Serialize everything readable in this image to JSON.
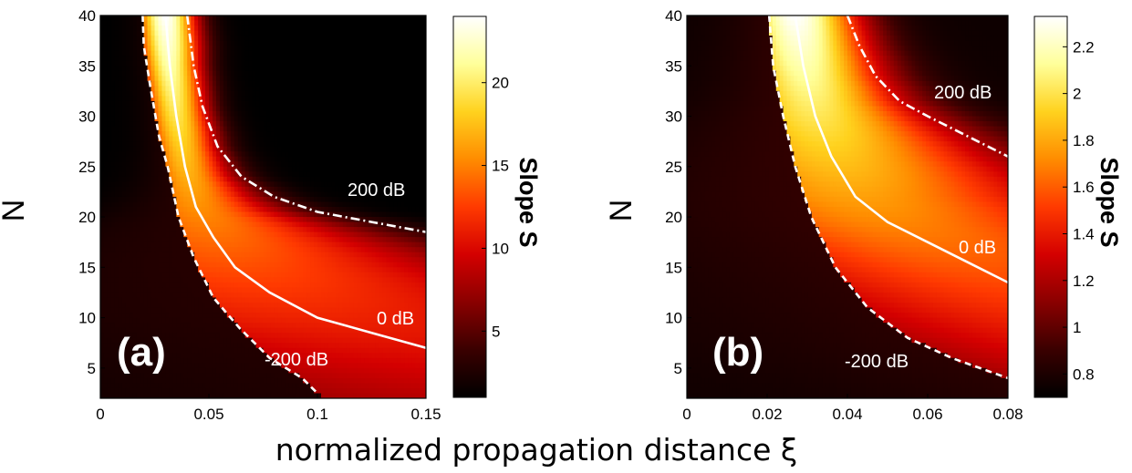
{
  "figure": {
    "xlabel": "normalized propagation distance ξ"
  },
  "colormap": [
    "#000000",
    "#3a0000",
    "#8a0000",
    "#d40000",
    "#ff3a00",
    "#ff8c00",
    "#ffd21e",
    "#ffff9a",
    "#ffffff"
  ],
  "chart_data": [
    {
      "type": "heatmap",
      "panel_label": "(a)",
      "ylabel": "N",
      "colorbar_label": "Slope S",
      "xlim": [
        0,
        0.15
      ],
      "ylim": [
        2,
        40
      ],
      "xticks": [
        0,
        0.05,
        0.1,
        0.15
      ],
      "xtick_labels": [
        "0",
        "0.05",
        "0.1",
        "0.15"
      ],
      "yticks": [
        5,
        10,
        15,
        20,
        25,
        30,
        35,
        40
      ],
      "ytick_labels": [
        "5",
        "10",
        "15",
        "20",
        "25",
        "30",
        "35",
        "40"
      ],
      "clim": [
        1,
        24
      ],
      "cticks": [
        5,
        10,
        15,
        20
      ],
      "ctick_labels": [
        "5",
        "10",
        "15",
        "20"
      ],
      "ridge": {
        "k": 2.1,
        "max_value": 24,
        "floor_value": 1,
        "peak_at_N": 40
      },
      "contours": [
        {
          "label": "-200 dB",
          "style": "dashed",
          "points": [
            [
              0.0195,
              40
            ],
            [
              0.02,
              37
            ],
            [
              0.023,
              33
            ],
            [
              0.027,
              28
            ],
            [
              0.031,
              25
            ],
            [
              0.036,
              20
            ],
            [
              0.043,
              16
            ],
            [
              0.052,
              12
            ],
            [
              0.064,
              9
            ],
            [
              0.078,
              6
            ],
            [
              0.093,
              4
            ],
            [
              0.1,
              2.5
            ]
          ]
        },
        {
          "label": "0 dB",
          "style": "solid",
          "points": [
            [
              0.03,
              40
            ],
            [
              0.032,
              35
            ],
            [
              0.035,
              30
            ],
            [
              0.039,
              25
            ],
            [
              0.044,
              21
            ],
            [
              0.052,
              18
            ],
            [
              0.062,
              15
            ],
            [
              0.078,
              12.5
            ],
            [
              0.1,
              10
            ],
            [
              0.125,
              8.5
            ],
            [
              0.15,
              7
            ]
          ]
        },
        {
          "label": "200 dB",
          "style": "dashdot",
          "points": [
            [
              0.04,
              40
            ],
            [
              0.043,
              35
            ],
            [
              0.047,
              31
            ],
            [
              0.054,
              27
            ],
            [
              0.065,
              24
            ],
            [
              0.08,
              22
            ],
            [
              0.1,
              20.5
            ],
            [
              0.125,
              19.5
            ],
            [
              0.15,
              18.5
            ]
          ]
        }
      ]
    },
    {
      "type": "heatmap",
      "panel_label": "(b)",
      "ylabel": "N",
      "colorbar_label": "Slope S",
      "xlim": [
        0,
        0.08
      ],
      "ylim": [
        2,
        40
      ],
      "xticks": [
        0,
        0.02,
        0.04,
        0.06,
        0.08
      ],
      "xtick_labels": [
        "0",
        "0.02",
        "0.04",
        "0.06",
        "0.08"
      ],
      "yticks": [
        5,
        10,
        15,
        20,
        25,
        30,
        35,
        40
      ],
      "ytick_labels": [
        "5",
        "10",
        "15",
        "20",
        "25",
        "30",
        "35",
        "40"
      ],
      "clim": [
        0.7,
        2.33
      ],
      "cticks": [
        0.8,
        1,
        1.2,
        1.4,
        1.6,
        1.8,
        2,
        2.2
      ],
      "ctick_labels": [
        "0.8",
        "1",
        "1.2",
        "1.4",
        "1.6",
        "1.8",
        "2",
        "2.2"
      ],
      "ridge": {
        "k": 1.55,
        "max_value": 2.33,
        "floor_value": 0.75,
        "peak_at_N": 40
      },
      "contours": [
        {
          "label": "-200 dB",
          "style": "dashed",
          "points": [
            [
              0.0205,
              40
            ],
            [
              0.0215,
              35
            ],
            [
              0.024,
              30
            ],
            [
              0.027,
              25
            ],
            [
              0.031,
              20
            ],
            [
              0.037,
              15
            ],
            [
              0.045,
              11
            ],
            [
              0.055,
              8
            ],
            [
              0.066,
              6
            ],
            [
              0.08,
              4
            ]
          ]
        },
        {
          "label": "0 dB",
          "style": "solid",
          "points": [
            [
              0.027,
              40
            ],
            [
              0.029,
              35
            ],
            [
              0.032,
              30
            ],
            [
              0.036,
              26
            ],
            [
              0.042,
              22
            ],
            [
              0.05,
              19.5
            ],
            [
              0.06,
              17.5
            ],
            [
              0.07,
              15.5
            ],
            [
              0.08,
              13.5
            ]
          ]
        },
        {
          "label": "200 dB",
          "style": "dashdot",
          "points": [
            [
              0.04,
              40
            ],
            [
              0.043,
              37
            ],
            [
              0.047,
              34
            ],
            [
              0.053,
              31.5
            ],
            [
              0.06,
              30
            ],
            [
              0.07,
              28
            ],
            [
              0.08,
              26
            ]
          ]
        }
      ]
    }
  ]
}
